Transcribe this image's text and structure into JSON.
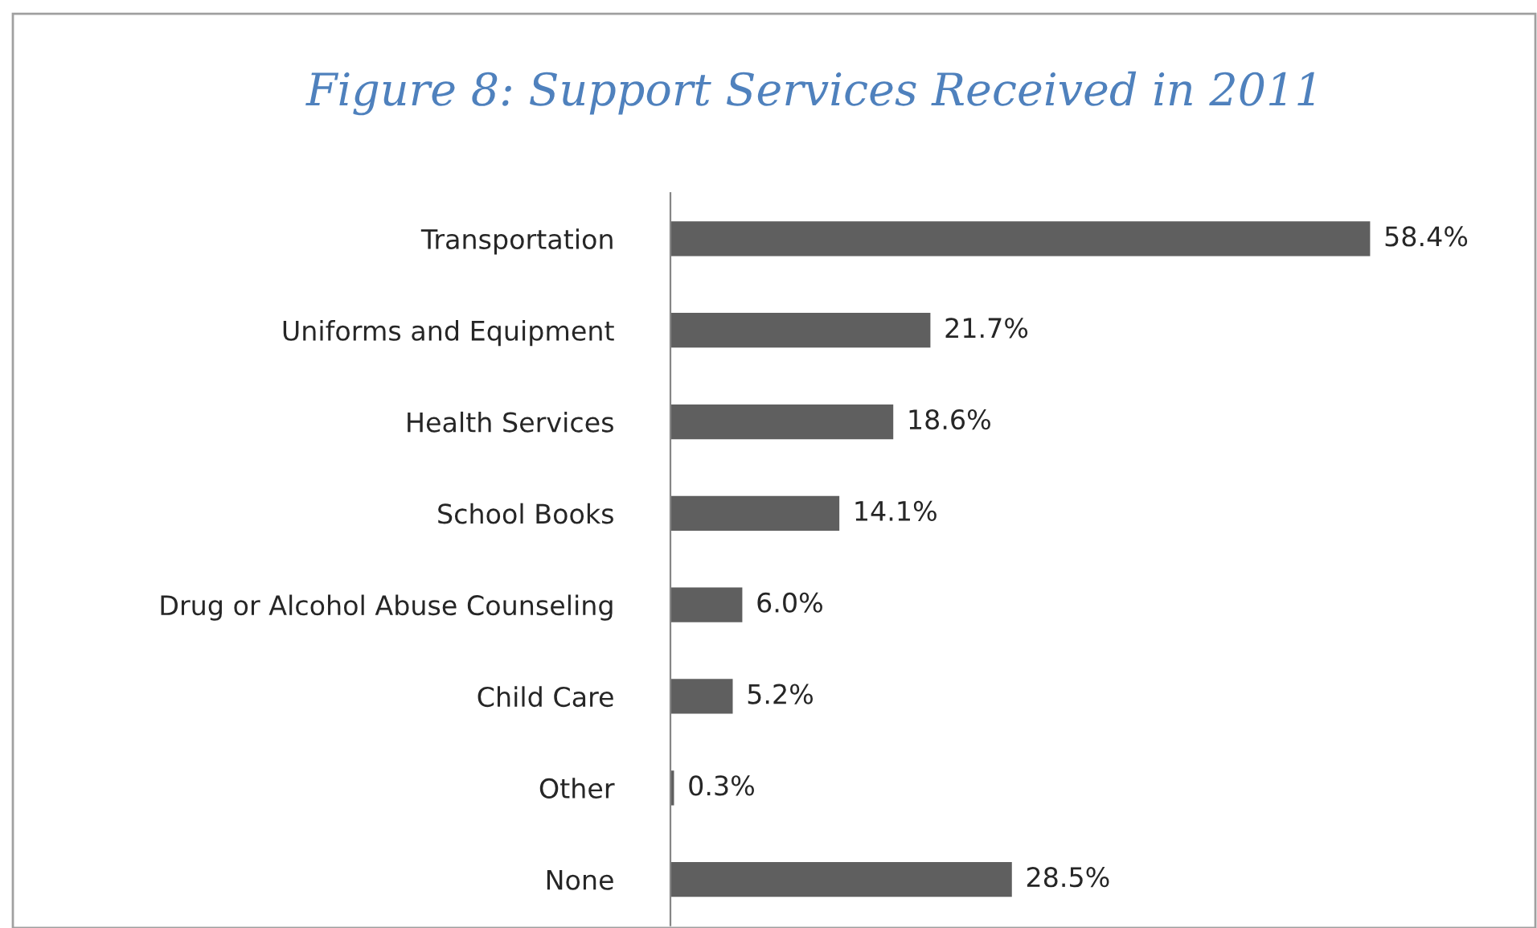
{
  "chart_data": {
    "type": "bar",
    "orientation": "horizontal",
    "title": "Figure 8: Support Services Received in 2011",
    "categories": [
      "Transportation",
      "Uniforms and Equipment",
      "Health Services",
      "School Books",
      "Drug or Alcohol Abuse Counseling",
      "Child Care",
      "Other",
      "None"
    ],
    "values": [
      58.4,
      21.7,
      18.6,
      14.1,
      6.0,
      5.2,
      0.3,
      28.5
    ],
    "value_labels": [
      "58.4%",
      "21.7%",
      "18.6%",
      "14.1%",
      "6.0%",
      "5.2%",
      "0.3%",
      "28.5%"
    ],
    "color": "#5f5f5f"
  }
}
